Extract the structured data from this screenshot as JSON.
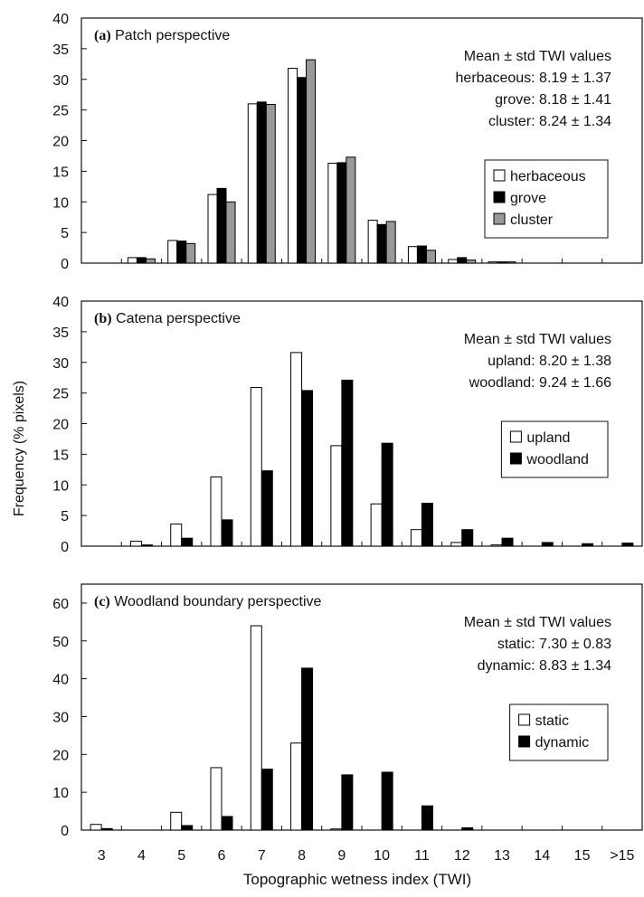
{
  "figure": {
    "ylabel": "Frequency (% pixels)",
    "xlabel": "Topographic wetness index (TWI)"
  },
  "chart_data": [
    {
      "type": "bar",
      "panel_letter": "(a)",
      "title": "Patch perspective",
      "categories": [
        "3",
        "4",
        "5",
        "6",
        "7",
        "8",
        "9",
        "10",
        "11",
        "12",
        "13",
        "14",
        "15",
        ">15"
      ],
      "ylim": [
        0,
        40
      ],
      "yticks": [
        0,
        5,
        10,
        15,
        20,
        25,
        30,
        35,
        40
      ],
      "legend_position": "right",
      "stats_heading": "Mean ± std TWI values",
      "stats": [
        "herbaceous: 8.19 ± 1.37",
        "grove: 8.18 ± 1.41",
        "cluster: 8.24 ± 1.34"
      ],
      "series": [
        {
          "name": "herbaceous",
          "color": "#ffffff",
          "values": [
            0,
            0.9,
            3.7,
            11.2,
            26.0,
            31.8,
            16.3,
            7.0,
            2.7,
            0.6,
            0.2,
            0,
            0,
            0
          ]
        },
        {
          "name": "grove",
          "color": "#000000",
          "values": [
            0,
            0.9,
            3.6,
            12.2,
            26.3,
            30.3,
            16.4,
            6.3,
            2.8,
            0.9,
            0.2,
            0,
            0,
            0
          ]
        },
        {
          "name": "cluster",
          "color": "#999999",
          "values": [
            0,
            0.7,
            3.2,
            10.0,
            25.9,
            33.2,
            17.3,
            6.8,
            2.1,
            0.5,
            0.2,
            0,
            0,
            0
          ]
        }
      ]
    },
    {
      "type": "bar",
      "panel_letter": "(b)",
      "title": "Catena perspective",
      "categories": [
        "3",
        "4",
        "5",
        "6",
        "7",
        "8",
        "9",
        "10",
        "11",
        "12",
        "13",
        "14",
        "15",
        ">15"
      ],
      "ylim": [
        0,
        40
      ],
      "yticks": [
        0,
        5,
        10,
        15,
        20,
        25,
        30,
        35,
        40
      ],
      "legend_position": "right",
      "stats_heading": "Mean ± std TWI values",
      "stats": [
        "upland: 8.20 ± 1.38",
        "woodland: 9.24 ± 1.66"
      ],
      "series": [
        {
          "name": "upland",
          "color": "#ffffff",
          "values": [
            0,
            0.8,
            3.6,
            11.3,
            25.9,
            31.6,
            16.4,
            6.9,
            2.7,
            0.6,
            0.2,
            0,
            0,
            0
          ]
        },
        {
          "name": "woodland",
          "color": "#000000",
          "values": [
            0,
            0.2,
            1.3,
            4.3,
            12.3,
            25.4,
            27.1,
            16.8,
            7.0,
            2.7,
            1.3,
            0.6,
            0.4,
            0.5
          ]
        }
      ]
    },
    {
      "type": "bar",
      "panel_letter": "(c)",
      "title": "Woodland boundary perspective",
      "categories": [
        "3",
        "4",
        "5",
        "6",
        "7",
        "8",
        "9",
        "10",
        "11",
        "12",
        "13",
        "14",
        "15",
        ">15"
      ],
      "ylim": [
        0,
        65
      ],
      "yticks": [
        0,
        10,
        20,
        30,
        40,
        50,
        60
      ],
      "legend_position": "right",
      "stats_heading": "Mean ± std TWI values",
      "stats": [
        "static: 7.30 ± 0.83",
        "dynamic: 8.83 ± 1.34"
      ],
      "series": [
        {
          "name": "static",
          "color": "#ffffff",
          "values": [
            1.5,
            0,
            4.7,
            16.5,
            54.0,
            23.0,
            0.3,
            0,
            0,
            0,
            0,
            0,
            0,
            0
          ]
        },
        {
          "name": "dynamic",
          "color": "#000000",
          "values": [
            0.4,
            0,
            1.2,
            3.6,
            16.1,
            42.8,
            14.6,
            15.3,
            6.4,
            0.6,
            0,
            0,
            0,
            0
          ]
        }
      ]
    }
  ]
}
